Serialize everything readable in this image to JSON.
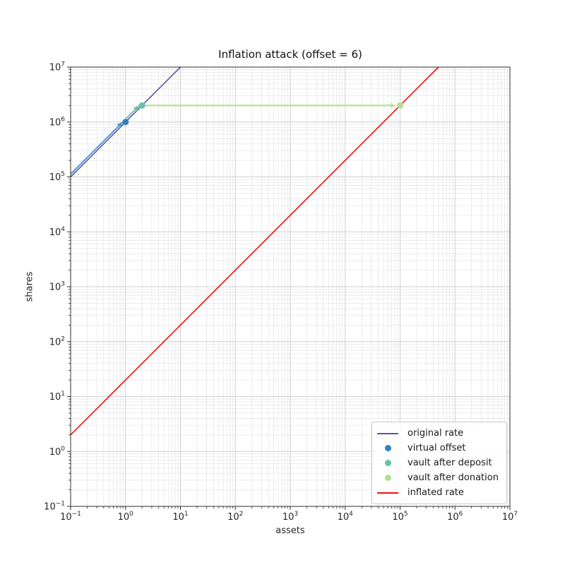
{
  "chart_data": {
    "type": "line",
    "title": "Inflation attack (offset = 6)",
    "xlabel": "assets",
    "ylabel": "shares",
    "x_scale": "log",
    "y_scale": "log",
    "xlim": [
      0.1,
      10000000
    ],
    "ylim": [
      0.1,
      10000000
    ],
    "x_tick_exponents": [
      -1,
      0,
      1,
      2,
      3,
      4,
      5,
      6,
      7
    ],
    "y_tick_exponents": [
      -1,
      0,
      1,
      2,
      3,
      4,
      5,
      6,
      7
    ],
    "grid": "both",
    "series": [
      {
        "name": "original rate",
        "color": "#5955a3",
        "width": 1.6,
        "points": [
          [
            0.1,
            100000
          ],
          [
            10,
            10000000
          ]
        ]
      },
      {
        "name": "inflated rate",
        "color": "#f20d0b",
        "width": 1.6,
        "points": [
          [
            0.1,
            2
          ],
          [
            500000,
            10000000
          ]
        ]
      }
    ],
    "markers": [
      {
        "name": "virtual offset",
        "color": "#3182bd",
        "x": 1,
        "y": 1000000
      },
      {
        "name": "vault after deposit",
        "color": "#66c2a5",
        "x": 2,
        "y": 2000000
      },
      {
        "name": "vault after donation",
        "color": "#b5dd8b",
        "x": 100000,
        "y": 2000000
      }
    ],
    "arrows": [
      {
        "name": "offset arrow",
        "color": "#4d9bd1",
        "width": 2,
        "from": [
          0.1,
          100000
        ],
        "to": [
          1,
          1000000
        ],
        "lift": -4
      },
      {
        "name": "deposit arrow",
        "color": "#6cc3a6",
        "width": 2,
        "from": [
          1,
          1000000
        ],
        "to": [
          2,
          2000000
        ],
        "lift": -4
      },
      {
        "name": "donation arrow",
        "color": "#c3e3a4",
        "width": 2.6,
        "from": [
          2,
          2000000
        ],
        "to": [
          100000,
          2000000
        ],
        "lift": 0
      }
    ],
    "legend": [
      {
        "label": "original rate",
        "marker": "line",
        "color": "#5955a3"
      },
      {
        "label": "virtual offset",
        "marker": "dot",
        "color": "#3182bd"
      },
      {
        "label": "vault after deposit",
        "marker": "dot",
        "color": "#66c2a5"
      },
      {
        "label": "vault after donation",
        "marker": "dot",
        "color": "#b5dd8b"
      },
      {
        "label": "inflated rate",
        "marker": "line",
        "color": "#f20d0b"
      }
    ],
    "legend_position": "lower right",
    "colors": {
      "grid_major": "#cfcfcf",
      "grid_minor": "#e7e7e7",
      "spine": "#2e2e2e",
      "tick_text": "#262626"
    }
  }
}
